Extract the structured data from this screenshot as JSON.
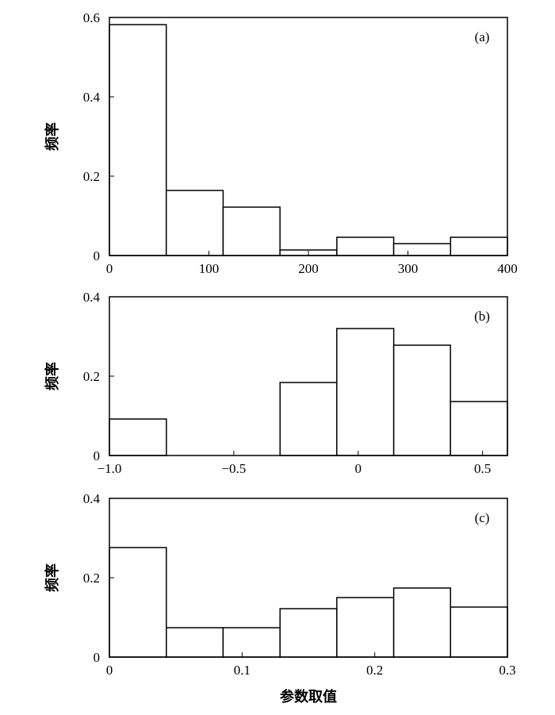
{
  "chart_data": [
    {
      "type": "histogram",
      "annotation": "(a)",
      "ylabel": "频率",
      "bins": [
        0,
        57.14,
        114.29,
        171.43,
        228.57,
        285.71,
        342.86,
        400
      ],
      "values": [
        0.582,
        0.164,
        0.122,
        0.014,
        0.046,
        0.03,
        0.046
      ],
      "color": "#ffffff",
      "xlim": [
        0,
        400
      ],
      "xticks": [
        0,
        100,
        200,
        300,
        400
      ],
      "ylim": [
        0,
        0.6
      ],
      "yticks": [
        0,
        0.2,
        0.4,
        0.6
      ]
    },
    {
      "type": "histogram",
      "annotation": "(b)",
      "ylabel": "频率",
      "bins": [
        -1.0,
        -0.771,
        -0.543,
        -0.314,
        -0.086,
        0.143,
        0.371,
        0.6
      ],
      "values": [
        0.092,
        0,
        0,
        0.184,
        0.32,
        0.278,
        0.136
      ],
      "color": "#ffffff",
      "xlim": [
        -1.0,
        0.6
      ],
      "xticks": [
        {
          "value": -1.0,
          "label": "−1.0"
        },
        {
          "value": -0.5,
          "label": "−0.5"
        },
        0,
        0.5
      ],
      "ylim": [
        0,
        0.4
      ],
      "yticks": [
        0,
        0.2,
        0.4
      ]
    },
    {
      "type": "histogram",
      "annotation": "(c)",
      "ylabel": "频率",
      "xlabel": "参数取值",
      "bins": [
        0,
        0.0429,
        0.0857,
        0.1286,
        0.1714,
        0.2143,
        0.2571,
        0.3
      ],
      "values": [
        0.276,
        0.074,
        0.074,
        0.122,
        0.15,
        0.174,
        0.126
      ],
      "color": "#ffffff",
      "xlim": [
        0,
        0.3
      ],
      "xticks": [
        0,
        0.1,
        0.2,
        0.3
      ],
      "ylim": [
        0,
        0.4
      ],
      "yticks": [
        0,
        0.2,
        0.4
      ]
    }
  ]
}
